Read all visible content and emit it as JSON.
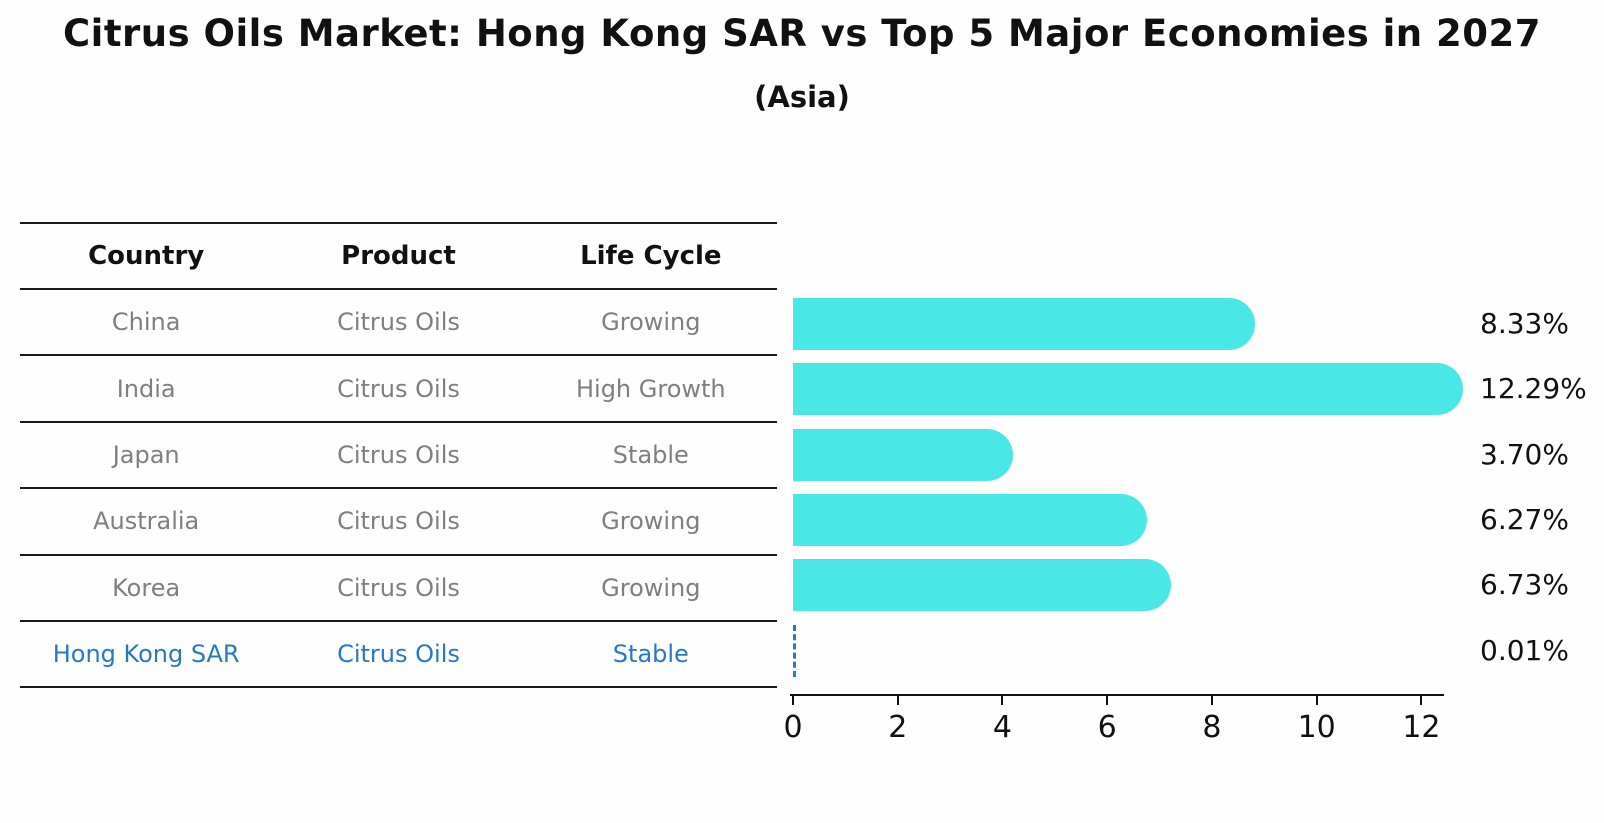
{
  "header": {
    "title": "Citrus Oils Market: Hong Kong SAR vs Top 5 Major Economies in 2027",
    "subtitle": "(Asia)"
  },
  "table": {
    "columns": [
      "Country",
      "Product",
      "Life Cycle"
    ],
    "rows": [
      {
        "country": "China",
        "product": "Citrus Oils",
        "life_cycle": "Growing",
        "highlighted": false
      },
      {
        "country": "India",
        "product": "Citrus Oils",
        "life_cycle": "High Growth",
        "highlighted": false
      },
      {
        "country": "Japan",
        "product": "Citrus Oils",
        "life_cycle": "Stable",
        "highlighted": false
      },
      {
        "country": "Australia",
        "product": "Citrus Oils",
        "life_cycle": "Growing",
        "highlighted": false
      },
      {
        "country": "Korea",
        "product": "Citrus Oils",
        "life_cycle": "Growing",
        "highlighted": false
      },
      {
        "country": "Hong Kong SAR",
        "product": "Citrus Oils",
        "life_cycle": "Stable",
        "highlighted": true
      }
    ]
  },
  "chart_data": {
    "type": "bar",
    "orientation": "horizontal",
    "title": "Citrus Oils Market: Hong Kong SAR vs Top 5 Major Economies in 2027 (Asia)",
    "categories": [
      "China",
      "India",
      "Japan",
      "Australia",
      "Korea",
      "Hong Kong SAR"
    ],
    "values": [
      8.33,
      12.29,
      3.7,
      6.27,
      6.73,
      0.01
    ],
    "value_labels": [
      "8.33%",
      "12.29%",
      "3.70%",
      "6.27%",
      "6.73%",
      "0.01%"
    ],
    "xticks": [
      0,
      2,
      4,
      6,
      8,
      10,
      12
    ],
    "xlim": [
      0,
      12.5
    ],
    "xlabel": "",
    "ylabel": "",
    "grid": false,
    "legend": false,
    "bar_color": "#49E8E6",
    "highlight_index": 5,
    "highlight_bar_style": "dashed-outline",
    "highlight_color": "#2f77b6",
    "highlight_text_color": "#2878C8"
  }
}
